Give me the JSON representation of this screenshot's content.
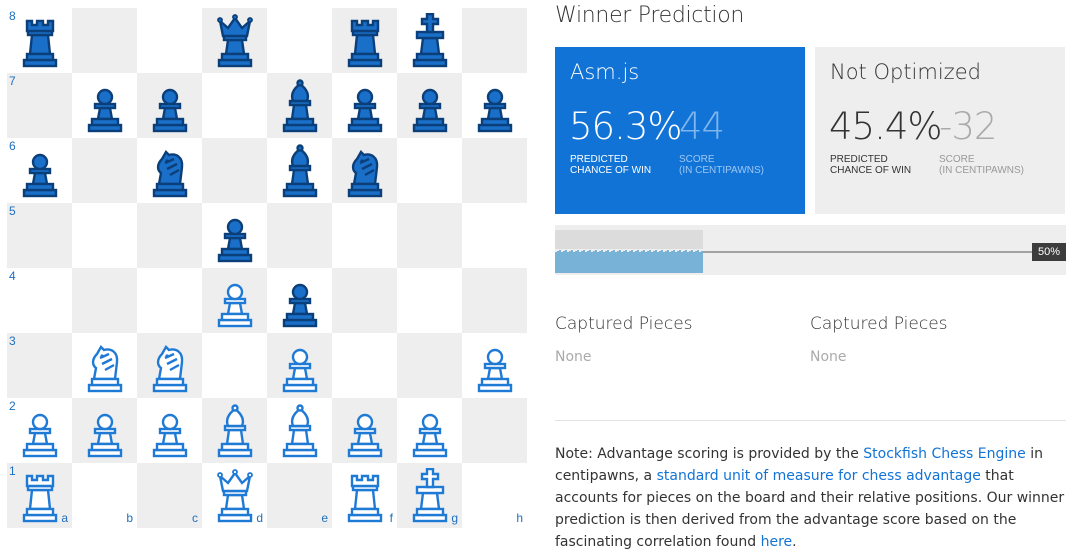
{
  "board": {
    "files": [
      "a",
      "b",
      "c",
      "d",
      "e",
      "f",
      "g",
      "h"
    ],
    "ranks": [
      "8",
      "7",
      "6",
      "5",
      "4",
      "3",
      "2",
      "1"
    ],
    "pieces": [
      {
        "square": "a8",
        "color": "black",
        "type": "rook"
      },
      {
        "square": "d8",
        "color": "black",
        "type": "queen"
      },
      {
        "square": "f8",
        "color": "black",
        "type": "rook"
      },
      {
        "square": "g8",
        "color": "black",
        "type": "king"
      },
      {
        "square": "b7",
        "color": "black",
        "type": "pawn"
      },
      {
        "square": "c7",
        "color": "black",
        "type": "pawn"
      },
      {
        "square": "e7",
        "color": "black",
        "type": "bishop"
      },
      {
        "square": "f7",
        "color": "black",
        "type": "pawn"
      },
      {
        "square": "g7",
        "color": "black",
        "type": "pawn"
      },
      {
        "square": "h7",
        "color": "black",
        "type": "pawn"
      },
      {
        "square": "a6",
        "color": "black",
        "type": "pawn"
      },
      {
        "square": "c6",
        "color": "black",
        "type": "knight"
      },
      {
        "square": "e6",
        "color": "black",
        "type": "bishop"
      },
      {
        "square": "f6",
        "color": "black",
        "type": "knight"
      },
      {
        "square": "d5",
        "color": "black",
        "type": "pawn"
      },
      {
        "square": "d4",
        "color": "white",
        "type": "pawn"
      },
      {
        "square": "e4",
        "color": "black",
        "type": "pawn"
      },
      {
        "square": "b3",
        "color": "white",
        "type": "knight"
      },
      {
        "square": "c3",
        "color": "white",
        "type": "knight"
      },
      {
        "square": "e3",
        "color": "white",
        "type": "pawn"
      },
      {
        "square": "h3",
        "color": "white",
        "type": "pawn"
      },
      {
        "square": "a2",
        "color": "white",
        "type": "pawn"
      },
      {
        "square": "b2",
        "color": "white",
        "type": "pawn"
      },
      {
        "square": "c2",
        "color": "white",
        "type": "pawn"
      },
      {
        "square": "d2",
        "color": "white",
        "type": "bishop"
      },
      {
        "square": "e2",
        "color": "white",
        "type": "bishop"
      },
      {
        "square": "f2",
        "color": "white",
        "type": "pawn"
      },
      {
        "square": "g2",
        "color": "white",
        "type": "pawn"
      },
      {
        "square": "a1",
        "color": "white",
        "type": "rook"
      },
      {
        "square": "d1",
        "color": "white",
        "type": "queen"
      },
      {
        "square": "f1",
        "color": "white",
        "type": "rook"
      },
      {
        "square": "g1",
        "color": "white",
        "type": "king"
      }
    ]
  },
  "prediction": {
    "title": "Winner Prediction",
    "asm": {
      "name": "Asm.js",
      "chance": "56.3%",
      "score": "44",
      "chance_label_1": "PREDICTED",
      "chance_label_2": "CHANCE OF WIN",
      "score_label_1": "SCORE",
      "score_label_2": "(IN CENTIPAWNS)"
    },
    "noopt": {
      "name": "Not Optimized",
      "chance": "45.4%",
      "score": "-32",
      "chance_label_1": "PREDICTED",
      "chance_label_2": "CHANCE OF WIN",
      "score_label_1": "SCORE",
      "score_label_2": "(IN CENTIPAWNS)"
    },
    "meter_label": "50%",
    "meter_progress": 0.31
  },
  "captured": {
    "left": {
      "title": "Captured Pieces",
      "value": "None"
    },
    "right": {
      "title": "Captured Pieces",
      "value": "None"
    }
  },
  "note": {
    "t1": "Note: Advantage scoring is provided by the ",
    "link1": "Stockfish Chess Engine",
    "t2": " in centipawns, a ",
    "link2": "standard unit of measure for chess advantage",
    "t3": " that accounts for pieces on the board and their relative positions. Our winner prediction is then derived from the advantage score based on the fascinating correlation found ",
    "link3": "here",
    "t4": "."
  },
  "colors": {
    "accent": "#1273d6",
    "black_piece_fill": "#1a6fc9",
    "white_piece_fill": "#ffffff",
    "piece_stroke": "#0b3f7a",
    "white_piece_stroke": "#1f7ad6"
  }
}
